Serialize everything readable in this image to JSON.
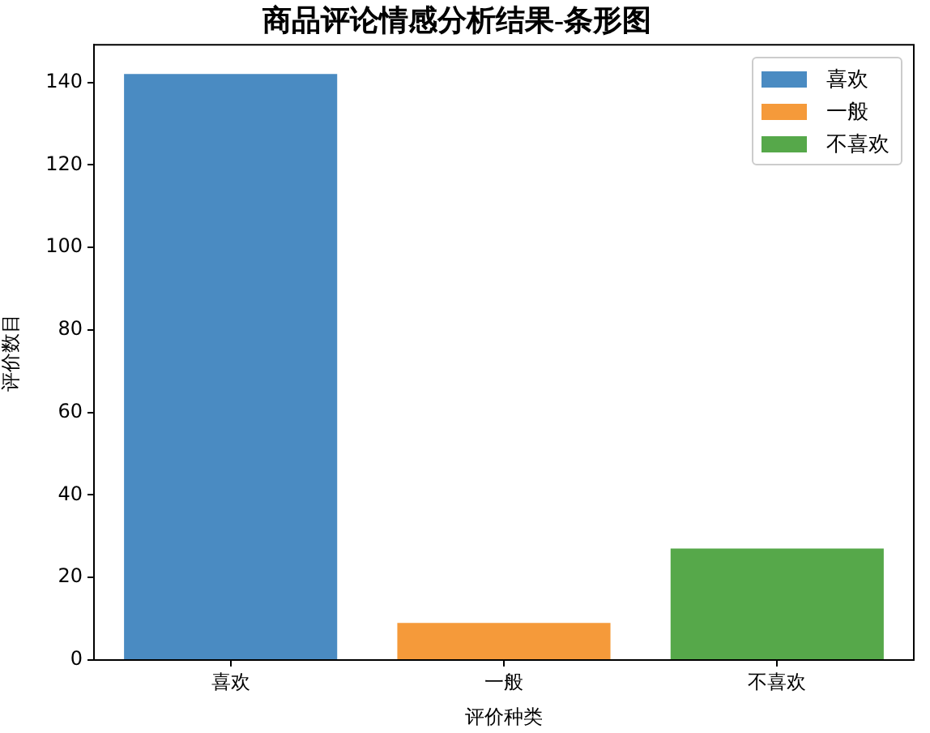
{
  "chart_data": {
    "type": "bar",
    "title": "商品评论情感分析结果-条形图",
    "xlabel": "评价种类",
    "ylabel": "评价数目",
    "categories": [
      "喜欢",
      "一般",
      "不喜欢"
    ],
    "series": [
      {
        "name": "喜欢",
        "color": "#4a8bc2",
        "values": [
          142,
          null,
          null
        ]
      },
      {
        "name": "一般",
        "color": "#f59a3a",
        "values": [
          null,
          9,
          null
        ]
      },
      {
        "name": "不喜欢",
        "color": "#56a84a",
        "values": [
          null,
          null,
          27
        ]
      }
    ],
    "ylim": [
      0,
      149.1
    ],
    "yticks": [
      0,
      20,
      40,
      60,
      80,
      100,
      120,
      140
    ],
    "legend": "top right"
  }
}
